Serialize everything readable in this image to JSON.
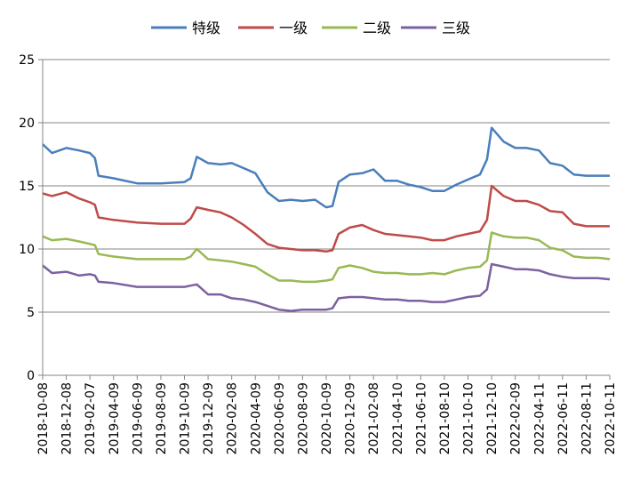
{
  "chart_data": {
    "type": "line",
    "legend_position": "top-center",
    "grid": true,
    "ylim": [
      0,
      25
    ],
    "yticks": [
      0,
      5,
      10,
      15,
      20,
      25
    ],
    "x_tick_labels": [
      "2018-10-08",
      "2018-12-08",
      "2019-02-07",
      "2019-04-09",
      "2019-06-09",
      "2019-08-09",
      "2019-10-09",
      "2019-12-09",
      "2020-02-08",
      "2020-04-09",
      "2020-06-09",
      "2020-08-09",
      "2020-10-09",
      "2020-12-09",
      "2021-02-08",
      "2021-04-10",
      "2021-06-10",
      "2021-08-10",
      "2021-10-10",
      "2021-12-10",
      "2022-02-09",
      "2022-04-11",
      "2022-06-11",
      "2022-08-11",
      "2022-10-11"
    ],
    "x": [
      "2018-10-08",
      "2018-11-01",
      "2018-12-08",
      "2019-01-10",
      "2019-02-07",
      "2019-02-20",
      "2019-03-01",
      "2019-04-09",
      "2019-06-09",
      "2019-08-09",
      "2019-10-09",
      "2019-10-25",
      "2019-11-10",
      "2019-12-09",
      "2020-01-10",
      "2020-02-08",
      "2020-03-10",
      "2020-04-09",
      "2020-05-10",
      "2020-06-09",
      "2020-07-10",
      "2020-08-09",
      "2020-09-10",
      "2020-10-09",
      "2020-10-25",
      "2020-11-10",
      "2020-12-09",
      "2021-01-10",
      "2021-02-08",
      "2021-03-10",
      "2021-04-10",
      "2021-05-10",
      "2021-06-10",
      "2021-07-10",
      "2021-08-10",
      "2021-09-10",
      "2021-10-10",
      "2021-11-10",
      "2021-11-28",
      "2021-12-10",
      "2022-01-10",
      "2022-02-09",
      "2022-03-10",
      "2022-04-11",
      "2022-05-10",
      "2022-06-11",
      "2022-07-10",
      "2022-08-11",
      "2022-09-10",
      "2022-10-11"
    ],
    "series": [
      {
        "name": "特级",
        "color": "#4a7ebb",
        "values": [
          18.3,
          17.6,
          18.0,
          17.8,
          17.6,
          17.2,
          15.8,
          15.6,
          15.2,
          15.2,
          15.3,
          15.6,
          17.3,
          16.8,
          16.7,
          16.8,
          16.4,
          16.0,
          14.5,
          13.8,
          13.9,
          13.8,
          13.9,
          13.3,
          13.4,
          15.3,
          15.9,
          16.0,
          16.3,
          15.4,
          15.4,
          15.1,
          14.9,
          14.6,
          14.6,
          15.1,
          15.5,
          15.9,
          17.1,
          19.6,
          18.5,
          18.0,
          18.0,
          17.8,
          16.8,
          16.6,
          15.9,
          15.8,
          15.8,
          15.8
        ]
      },
      {
        "name": "一级",
        "color": "#be4b48",
        "values": [
          14.4,
          14.2,
          14.5,
          14.0,
          13.7,
          13.5,
          12.5,
          12.3,
          12.1,
          12.0,
          12.0,
          12.4,
          13.3,
          13.1,
          12.9,
          12.5,
          11.9,
          11.2,
          10.4,
          10.1,
          10.0,
          9.9,
          9.9,
          9.8,
          9.9,
          11.2,
          11.7,
          11.9,
          11.5,
          11.2,
          11.1,
          11.0,
          10.9,
          10.7,
          10.7,
          11.0,
          11.2,
          11.4,
          12.3,
          15.0,
          14.2,
          13.8,
          13.8,
          13.5,
          13.0,
          12.9,
          12.0,
          11.8,
          11.8,
          11.8
        ]
      },
      {
        "name": "二级",
        "color": "#98b954",
        "values": [
          11.0,
          10.7,
          10.8,
          10.6,
          10.4,
          10.3,
          9.6,
          9.4,
          9.2,
          9.2,
          9.2,
          9.4,
          10.0,
          9.2,
          9.1,
          9.0,
          8.8,
          8.6,
          8.0,
          7.5,
          7.5,
          7.4,
          7.4,
          7.5,
          7.6,
          8.5,
          8.7,
          8.5,
          8.2,
          8.1,
          8.1,
          8.0,
          8.0,
          8.1,
          8.0,
          8.3,
          8.5,
          8.6,
          9.1,
          11.3,
          11.0,
          10.9,
          10.9,
          10.7,
          10.1,
          9.9,
          9.4,
          9.3,
          9.3,
          9.2
        ]
      },
      {
        "name": "三级",
        "color": "#7d60a0",
        "values": [
          8.7,
          8.1,
          8.2,
          7.9,
          8.0,
          7.9,
          7.4,
          7.3,
          7.0,
          7.0,
          7.0,
          7.1,
          7.2,
          6.4,
          6.4,
          6.1,
          6.0,
          5.8,
          5.5,
          5.2,
          5.1,
          5.2,
          5.2,
          5.2,
          5.3,
          6.1,
          6.2,
          6.2,
          6.1,
          6.0,
          6.0,
          5.9,
          5.9,
          5.8,
          5.8,
          6.0,
          6.2,
          6.3,
          6.8,
          8.8,
          8.6,
          8.4,
          8.4,
          8.3,
          8.0,
          7.8,
          7.7,
          7.7,
          7.7,
          7.6
        ]
      }
    ]
  }
}
